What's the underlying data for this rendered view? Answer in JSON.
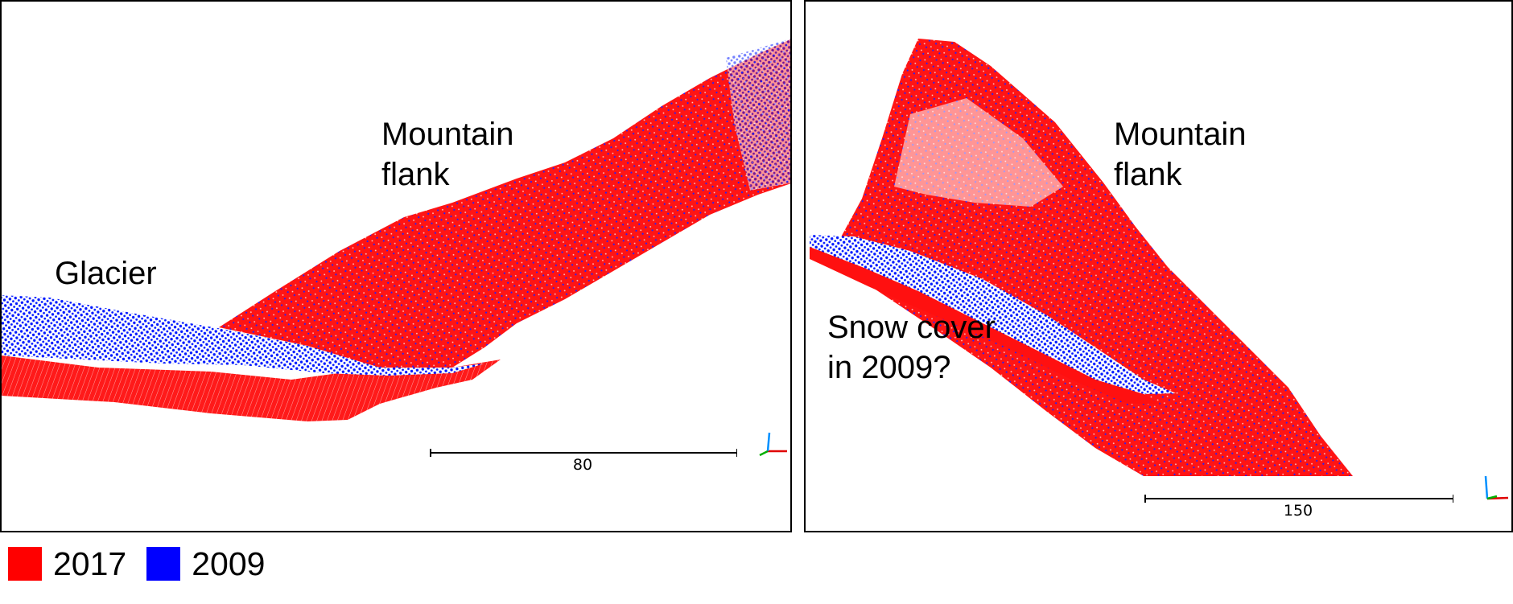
{
  "panels": {
    "left": {
      "labels": {
        "mountain": "Mountain\nflank",
        "glacier": "Glacier"
      },
      "scale_bar": "80"
    },
    "right": {
      "labels": {
        "mountain": "Mountain\nflank",
        "snow": "Snow cover\nin 2009?"
      },
      "scale_bar": "150"
    }
  },
  "legend": [
    {
      "label": "2017",
      "color": "#ff0000"
    },
    {
      "label": "2009",
      "color": "#0000ff"
    }
  ],
  "icons": [
    "axis-gizmo-icon"
  ]
}
